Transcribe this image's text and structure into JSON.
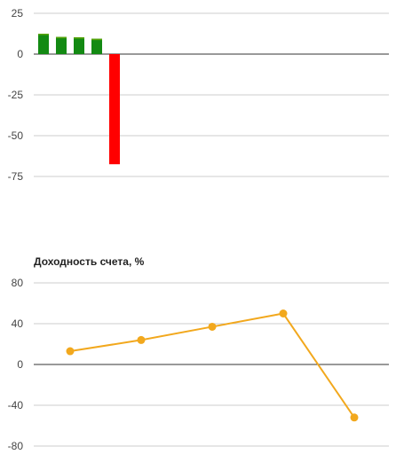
{
  "chart_data": [
    {
      "type": "bar",
      "title": "",
      "categories": [
        "",
        "",
        "",
        "",
        ""
      ],
      "values": [
        12.5,
        10.5,
        10.3,
        9.4,
        -67.5
      ],
      "ylim": [
        -75,
        25
      ],
      "yticks": [
        25,
        0,
        -25,
        -50,
        -75
      ],
      "grid": true,
      "colors": {
        "positive": "#138a13",
        "positive_cap": "#5aa50a",
        "negative": "#ff0000"
      }
    },
    {
      "type": "line",
      "title": "Доходность счета, %",
      "x": [
        1,
        2,
        3,
        4,
        5
      ],
      "values": [
        13,
        24,
        37,
        50,
        -52
      ],
      "ylim": [
        -80,
        80
      ],
      "yticks": [
        80,
        40,
        0,
        -40,
        -80
      ],
      "grid": true,
      "colors": {
        "line": "#f2a81d"
      }
    }
  ]
}
